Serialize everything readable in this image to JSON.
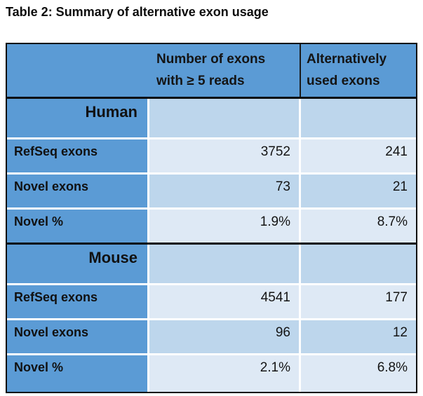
{
  "caption": "Table 2: Summary of alternative exon usage",
  "table": {
    "header": {
      "blank": "",
      "col2_line1": "Number of exons",
      "col2_line2": "with ≥ 5 reads",
      "col3_line1": "Alternatively",
      "col3_line2": "used exons"
    },
    "colors": {
      "header_blue": "#5B9BD5",
      "band_medium": "#BDD6EC",
      "band_light": "#DEE9F5",
      "border_black": "#0D0D0D",
      "grid_white": "#FFFFFF"
    },
    "sections": [
      {
        "name": "Human",
        "rows": [
          {
            "label": "RefSeq exons",
            "values": [
              "3752",
              "241"
            ]
          },
          {
            "label": "Novel exons",
            "values": [
              "73",
              "21"
            ]
          },
          {
            "label": "Novel %",
            "values": [
              "1.9%",
              "8.7%"
            ]
          }
        ]
      },
      {
        "name": "Mouse",
        "rows": [
          {
            "label": "RefSeq exons",
            "values": [
              "4541",
              "177"
            ]
          },
          {
            "label": "Novel exons",
            "values": [
              "96",
              "12"
            ]
          },
          {
            "label": "Novel %",
            "values": [
              "2.1%",
              "6.8%"
            ]
          }
        ]
      }
    ]
  }
}
